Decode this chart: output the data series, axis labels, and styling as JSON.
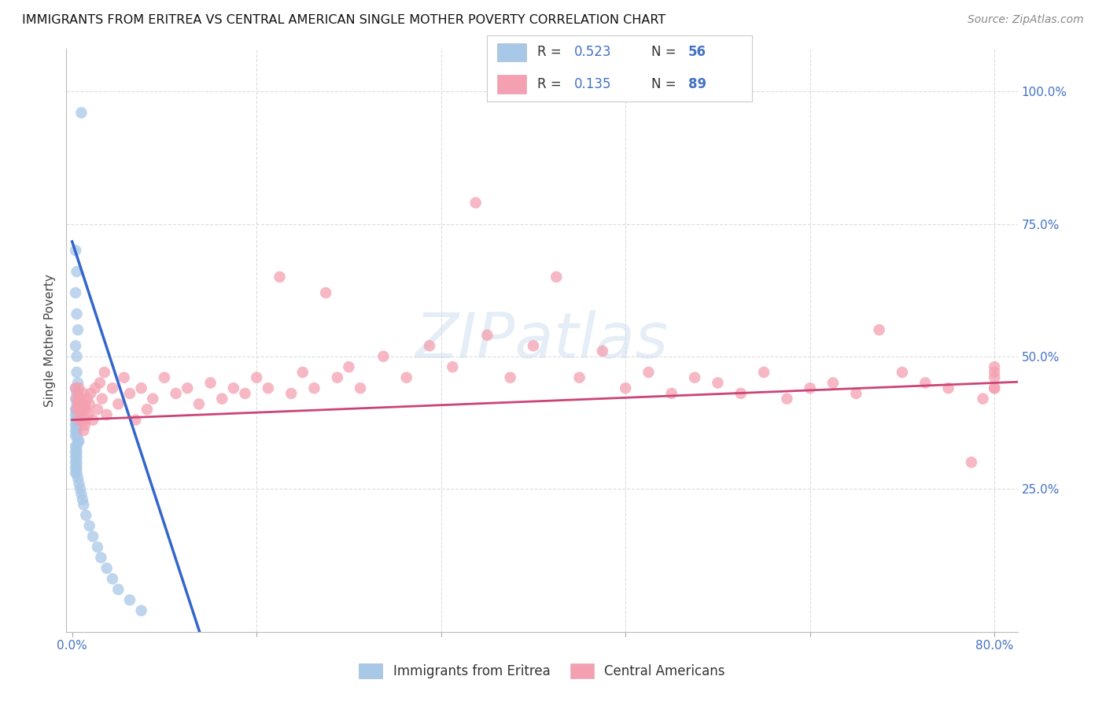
{
  "title": "IMMIGRANTS FROM ERITREA VS CENTRAL AMERICAN SINGLE MOTHER POVERTY CORRELATION CHART",
  "source": "Source: ZipAtlas.com",
  "ylabel": "Single Mother Poverty",
  "x_tick_labels": [
    "0.0%",
    "",
    "",
    "",
    "",
    "80.0%"
  ],
  "x_tick_vals": [
    0.0,
    0.16,
    0.32,
    0.48,
    0.64,
    0.8
  ],
  "y_tick_labels_right": [
    "100.0%",
    "75.0%",
    "50.0%",
    "25.0%"
  ],
  "y_tick_vals_right": [
    1.0,
    0.75,
    0.5,
    0.25
  ],
  "xlim": [
    -0.005,
    0.82
  ],
  "ylim": [
    -0.02,
    1.08
  ],
  "legend_eritrea_label": "Immigrants from Eritrea",
  "legend_ca_label": "Central Americans",
  "R_eritrea": "0.523",
  "N_eritrea": "56",
  "R_ca": "0.135",
  "N_ca": "89",
  "eritrea_color": "#a8c8e8",
  "eritrea_line_color": "#3366cc",
  "ca_color": "#f4a0b0",
  "ca_line_color": "#cc4477",
  "background_color": "#ffffff",
  "grid_color": "#dddddd",
  "text_color_blue": "#4472C4",
  "watermark_color": "#d0dff0",
  "eritrea_x": [
    0.008,
    0.003,
    0.004,
    0.003,
    0.004,
    0.005,
    0.003,
    0.004,
    0.004,
    0.005,
    0.003,
    0.004,
    0.003,
    0.004,
    0.003,
    0.004,
    0.003,
    0.004,
    0.003,
    0.004,
    0.003,
    0.004,
    0.003,
    0.004,
    0.003,
    0.004,
    0.005,
    0.006,
    0.003,
    0.004,
    0.003,
    0.004,
    0.003,
    0.004,
    0.003,
    0.004,
    0.003,
    0.004,
    0.003,
    0.004,
    0.005,
    0.006,
    0.007,
    0.008,
    0.009,
    0.01,
    0.012,
    0.015,
    0.018,
    0.022,
    0.025,
    0.03,
    0.035,
    0.04,
    0.05,
    0.06
  ],
  "eritrea_y": [
    0.96,
    0.7,
    0.66,
    0.62,
    0.58,
    0.55,
    0.52,
    0.5,
    0.47,
    0.45,
    0.44,
    0.43,
    0.42,
    0.41,
    0.4,
    0.4,
    0.39,
    0.39,
    0.38,
    0.38,
    0.37,
    0.37,
    0.36,
    0.36,
    0.35,
    0.35,
    0.34,
    0.34,
    0.33,
    0.33,
    0.32,
    0.32,
    0.31,
    0.31,
    0.3,
    0.3,
    0.29,
    0.29,
    0.28,
    0.28,
    0.27,
    0.26,
    0.25,
    0.24,
    0.23,
    0.22,
    0.2,
    0.18,
    0.16,
    0.14,
    0.12,
    0.1,
    0.08,
    0.06,
    0.04,
    0.02
  ],
  "ca_x": [
    0.003,
    0.004,
    0.004,
    0.005,
    0.005,
    0.006,
    0.006,
    0.007,
    0.007,
    0.008,
    0.008,
    0.009,
    0.009,
    0.01,
    0.01,
    0.011,
    0.011,
    0.012,
    0.012,
    0.013,
    0.014,
    0.015,
    0.016,
    0.018,
    0.02,
    0.022,
    0.024,
    0.026,
    0.028,
    0.03,
    0.035,
    0.04,
    0.045,
    0.05,
    0.055,
    0.06,
    0.065,
    0.07,
    0.08,
    0.09,
    0.1,
    0.11,
    0.12,
    0.13,
    0.14,
    0.15,
    0.16,
    0.17,
    0.18,
    0.19,
    0.2,
    0.21,
    0.22,
    0.23,
    0.24,
    0.25,
    0.27,
    0.29,
    0.31,
    0.33,
    0.35,
    0.36,
    0.38,
    0.4,
    0.42,
    0.44,
    0.46,
    0.48,
    0.5,
    0.52,
    0.54,
    0.56,
    0.58,
    0.6,
    0.62,
    0.64,
    0.66,
    0.68,
    0.7,
    0.72,
    0.74,
    0.76,
    0.78,
    0.79,
    0.8,
    0.8,
    0.8,
    0.8,
    0.8
  ],
  "ca_y": [
    0.44,
    0.42,
    0.4,
    0.43,
    0.41,
    0.38,
    0.44,
    0.4,
    0.42,
    0.39,
    0.41,
    0.38,
    0.4,
    0.36,
    0.43,
    0.37,
    0.41,
    0.38,
    0.4,
    0.42,
    0.39,
    0.41,
    0.43,
    0.38,
    0.44,
    0.4,
    0.45,
    0.42,
    0.47,
    0.39,
    0.44,
    0.41,
    0.46,
    0.43,
    0.38,
    0.44,
    0.4,
    0.42,
    0.46,
    0.43,
    0.44,
    0.41,
    0.45,
    0.42,
    0.44,
    0.43,
    0.46,
    0.44,
    0.65,
    0.43,
    0.47,
    0.44,
    0.62,
    0.46,
    0.48,
    0.44,
    0.5,
    0.46,
    0.52,
    0.48,
    0.79,
    0.54,
    0.46,
    0.52,
    0.65,
    0.46,
    0.51,
    0.44,
    0.47,
    0.43,
    0.46,
    0.45,
    0.43,
    0.47,
    0.42,
    0.44,
    0.45,
    0.43,
    0.55,
    0.47,
    0.45,
    0.44,
    0.3,
    0.42,
    0.48,
    0.44,
    0.46,
    0.47,
    0.44
  ]
}
